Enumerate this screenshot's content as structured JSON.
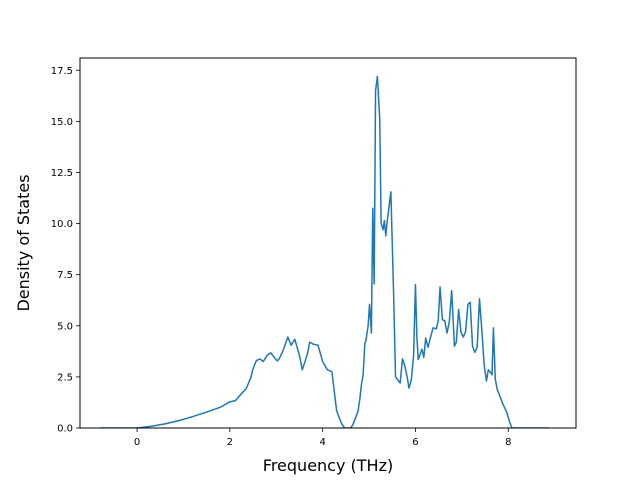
{
  "chart_data": {
    "type": "line",
    "title": "",
    "xlabel": "Frequency (THz)",
    "ylabel": "Density of States",
    "xlim": [
      -1.23,
      9.46
    ],
    "ylim": [
      0,
      18.1
    ],
    "xticks": [
      0,
      2,
      4,
      6,
      8
    ],
    "xtick_labels": [
      "0",
      "2",
      "4",
      "6",
      "8"
    ],
    "yticks": [
      0.0,
      2.5,
      5.0,
      7.5,
      10.0,
      12.5,
      15.0,
      17.5
    ],
    "ytick_labels": [
      "0.0",
      "2.5",
      "5.0",
      "7.5",
      "10.0",
      "12.5",
      "15.0",
      "17.5"
    ],
    "grid": false,
    "legend": "none",
    "colors": {
      "series": "#1f77b4"
    },
    "series": [
      {
        "x": [
          -0.8,
          0.0,
          0.3,
          0.6,
          0.9,
          1.2,
          1.5,
          1.8,
          2.0,
          2.12,
          2.25,
          2.35,
          2.45,
          2.5,
          2.57,
          2.65,
          2.72,
          2.8,
          2.88,
          2.95,
          3.02,
          3.06,
          3.13,
          3.18,
          3.25,
          3.32,
          3.4,
          3.5,
          3.56,
          3.62,
          3.67,
          3.72,
          3.8,
          3.9,
          4.0,
          4.1,
          4.2,
          4.3,
          4.4,
          4.47,
          4.55,
          4.6,
          4.65,
          4.7,
          4.76,
          4.8,
          4.84,
          4.87,
          4.91,
          4.93,
          4.98,
          5.01,
          5.05,
          5.08,
          5.11,
          5.14,
          5.18,
          5.23,
          5.26,
          5.3,
          5.33,
          5.36,
          5.39,
          5.47,
          5.53,
          5.57,
          5.62,
          5.67,
          5.72,
          5.77,
          5.82,
          5.86,
          5.91,
          5.96,
          6.0,
          6.03,
          6.06,
          6.1,
          6.14,
          6.18,
          6.22,
          6.27,
          6.32,
          6.38,
          6.45,
          6.49,
          6.53,
          6.58,
          6.63,
          6.68,
          6.73,
          6.78,
          6.84,
          6.88,
          6.93,
          6.98,
          7.03,
          7.08,
          7.13,
          7.18,
          7.23,
          7.28,
          7.33,
          7.38,
          7.43,
          7.48,
          7.53,
          7.57,
          7.62,
          7.65,
          7.68,
          7.72,
          7.76,
          7.82,
          7.87,
          7.92,
          7.97,
          8.02,
          8.08,
          8.2,
          8.6,
          8.88
        ],
        "y": [
          0.0,
          0.0,
          0.08,
          0.2,
          0.36,
          0.56,
          0.78,
          1.02,
          1.28,
          1.34,
          1.68,
          1.92,
          2.45,
          2.9,
          3.3,
          3.38,
          3.25,
          3.55,
          3.68,
          3.48,
          3.28,
          3.38,
          3.7,
          4.0,
          4.45,
          4.05,
          4.34,
          3.55,
          2.85,
          3.25,
          3.62,
          4.2,
          4.1,
          4.05,
          3.25,
          2.85,
          2.75,
          0.85,
          0.25,
          0.0,
          0.0,
          0.0,
          0.15,
          0.45,
          0.8,
          1.4,
          2.2,
          2.55,
          4.15,
          4.25,
          5.0,
          6.05,
          4.65,
          10.75,
          7.05,
          16.5,
          17.2,
          15.1,
          10.0,
          9.7,
          10.15,
          9.4,
          10.1,
          11.55,
          6.5,
          2.5,
          2.35,
          2.2,
          3.38,
          3.05,
          2.5,
          1.95,
          2.35,
          3.55,
          7.02,
          4.5,
          3.35,
          3.6,
          3.85,
          3.45,
          4.4,
          3.95,
          4.4,
          4.9,
          4.85,
          5.25,
          6.9,
          5.3,
          5.25,
          4.65,
          5.2,
          6.72,
          4.0,
          4.2,
          5.8,
          4.7,
          4.45,
          4.7,
          6.05,
          6.15,
          4.0,
          3.7,
          3.95,
          6.32,
          4.8,
          3.1,
          2.3,
          2.85,
          2.72,
          2.6,
          4.9,
          2.4,
          1.9,
          1.55,
          1.25,
          1.0,
          0.75,
          0.35,
          0.0,
          0.0,
          0.0,
          0.0
        ]
      }
    ]
  }
}
